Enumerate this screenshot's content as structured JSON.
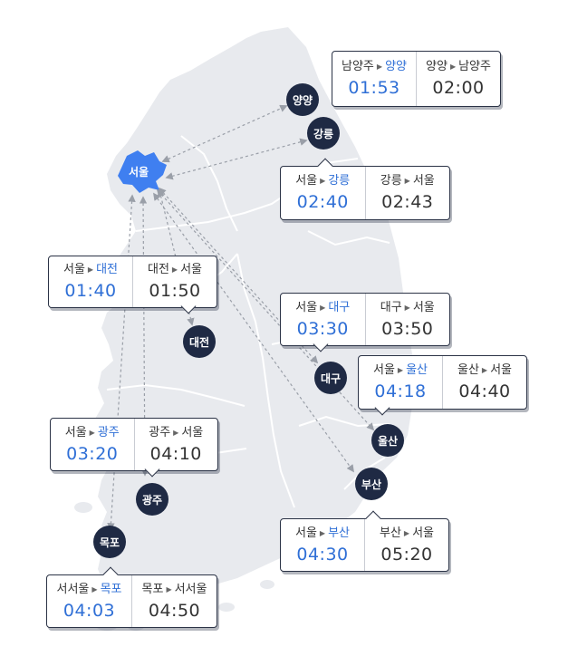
{
  "map": {
    "origin": "서울",
    "colors": {
      "land": "#e8eaee",
      "province_border": "#ffffff",
      "seoul": "#3f7ff0",
      "city_marker": "#1f2a44",
      "outbound": "#2f6fd6",
      "inbound": "#333333",
      "arrow": "#9a9fa8"
    },
    "cities": [
      {
        "id": "yangyang",
        "name": "양양"
      },
      {
        "id": "gangneung",
        "name": "강릉"
      },
      {
        "id": "daejeon",
        "name": "대전"
      },
      {
        "id": "daegu",
        "name": "대구"
      },
      {
        "id": "ulsan",
        "name": "울산"
      },
      {
        "id": "busan",
        "name": "부산"
      },
      {
        "id": "gwangju",
        "name": "광주"
      },
      {
        "id": "mokpo",
        "name": "목포"
      }
    ],
    "cards": [
      {
        "id": "yangyang",
        "out": {
          "from": "남양주",
          "to": "양양",
          "time": "01:53"
        },
        "in": {
          "from": "양양",
          "to": "남양주",
          "time": "02:00"
        }
      },
      {
        "id": "gangneung",
        "out": {
          "from": "서울",
          "to": "강릉",
          "time": "02:40"
        },
        "in": {
          "from": "강릉",
          "to": "서울",
          "time": "02:43"
        }
      },
      {
        "id": "daejeon",
        "out": {
          "from": "서울",
          "to": "대전",
          "time": "01:40"
        },
        "in": {
          "from": "대전",
          "to": "서울",
          "time": "01:50"
        }
      },
      {
        "id": "daegu",
        "out": {
          "from": "서울",
          "to": "대구",
          "time": "03:30"
        },
        "in": {
          "from": "대구",
          "to": "서울",
          "time": "03:50"
        }
      },
      {
        "id": "ulsan",
        "out": {
          "from": "서울",
          "to": "울산",
          "time": "04:18"
        },
        "in": {
          "from": "울산",
          "to": "서울",
          "time": "04:40"
        }
      },
      {
        "id": "gwangju",
        "out": {
          "from": "서울",
          "to": "광주",
          "time": "03:20"
        },
        "in": {
          "from": "광주",
          "to": "서울",
          "time": "04:10"
        }
      },
      {
        "id": "busan",
        "out": {
          "from": "서울",
          "to": "부산",
          "time": "04:30"
        },
        "in": {
          "from": "부산",
          "to": "서울",
          "time": "05:20"
        }
      },
      {
        "id": "mokpo",
        "out": {
          "from": "서서울",
          "to": "목포",
          "time": "04:03"
        },
        "in": {
          "from": "목포",
          "to": "서서울",
          "time": "04:50"
        }
      }
    ]
  }
}
